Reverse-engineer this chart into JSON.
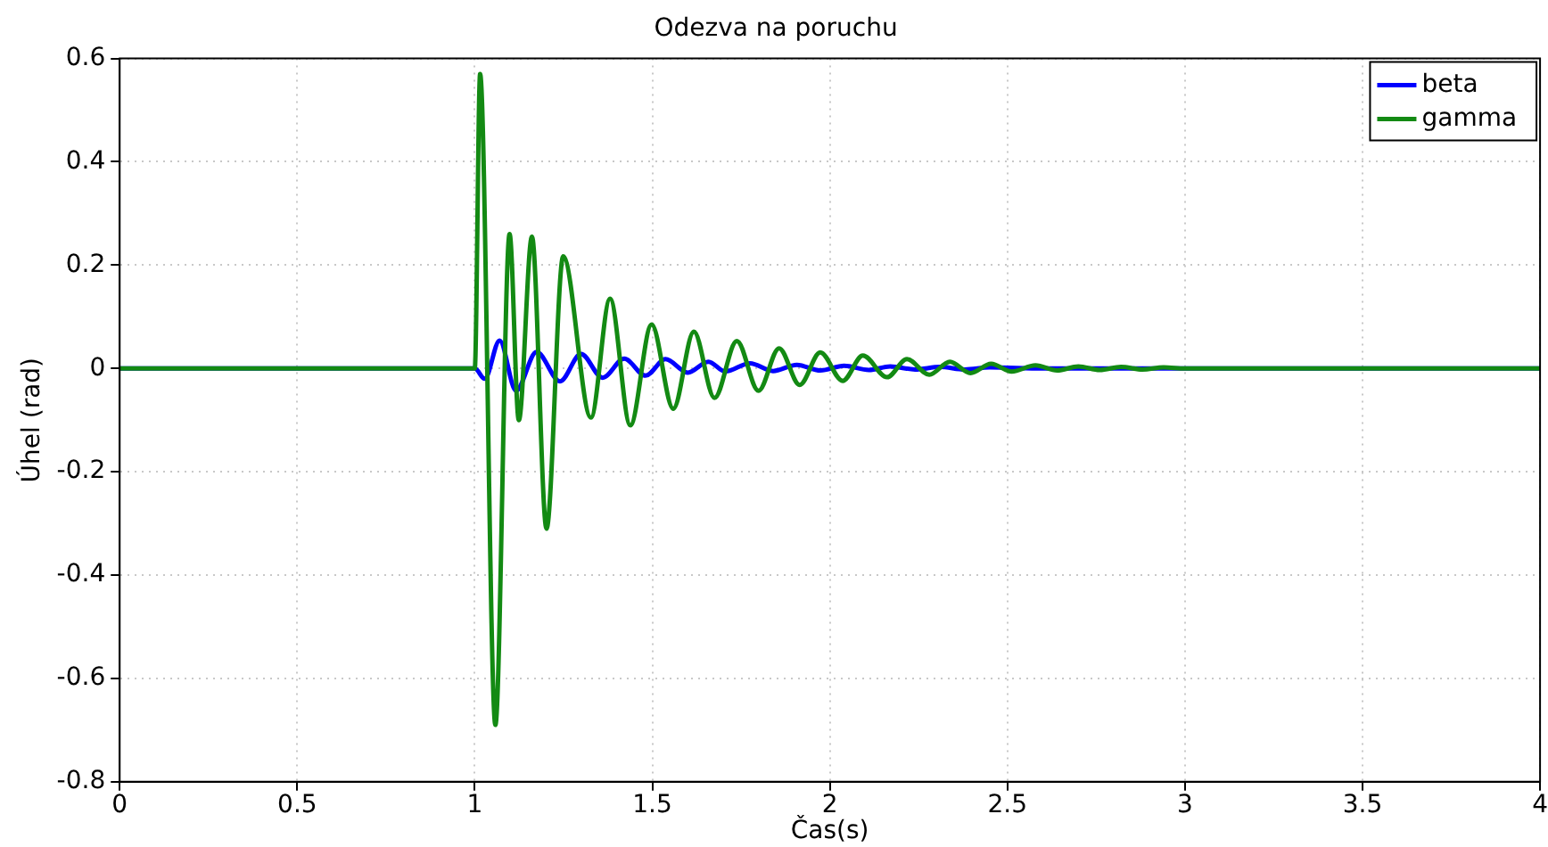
{
  "chart_data": {
    "type": "line",
    "title": "Odezva na poruchu",
    "xlabel": "Čas(s)",
    "ylabel": "Úhel (rad)",
    "xlim": [
      0,
      4
    ],
    "xticks": [
      0,
      0.5,
      1,
      1.5,
      2,
      2.5,
      3,
      3.5,
      4
    ],
    "ylim": [
      -0.8,
      0.6
    ],
    "yticks": [
      -0.8,
      -0.6,
      -0.4,
      -0.2,
      0,
      0.2,
      0.4,
      0.6
    ],
    "grid": true,
    "legend": "top right",
    "marker": "none",
    "line_style": "solid",
    "series": [
      {
        "name": "beta",
        "color": "#0000ff",
        "x": [
          0,
          1.0,
          1.028,
          1.07,
          1.116,
          1.174,
          1.24,
          1.299,
          1.36,
          1.421,
          1.481,
          1.537,
          1.6,
          1.658,
          1.705,
          1.775,
          1.84,
          1.907,
          1.973,
          2.04,
          2.11,
          2.17,
          2.24,
          2.31,
          2.38,
          2.45,
          2.6,
          4
        ],
        "values": [
          0,
          0,
          -0.02,
          0.054,
          -0.043,
          0.032,
          -0.025,
          0.028,
          -0.018,
          0.019,
          -0.014,
          0.018,
          -0.008,
          0.013,
          -0.006,
          0.01,
          -0.005,
          0.007,
          -0.004,
          0.005,
          -0.003,
          0.004,
          -0.002,
          0.003,
          -0.002,
          0.002,
          0,
          0
        ]
      },
      {
        "name": "gamma",
        "color": "#138a13",
        "x": [
          0,
          1.0,
          1.015,
          1.058,
          1.098,
          1.124,
          1.161,
          1.202,
          1.249,
          1.327,
          1.381,
          1.438,
          1.498,
          1.559,
          1.617,
          1.675,
          1.738,
          1.799,
          1.857,
          1.915,
          1.973,
          2.036,
          2.093,
          2.161,
          2.217,
          2.28,
          2.338,
          2.396,
          2.454,
          2.512,
          2.579,
          2.64,
          2.7,
          2.76,
          2.82,
          2.88,
          2.94,
          3.0,
          4
        ],
        "values": [
          0,
          0,
          0.57,
          -0.69,
          0.26,
          -0.1,
          0.255,
          -0.31,
          0.217,
          -0.095,
          0.135,
          -0.11,
          0.085,
          -0.078,
          0.071,
          -0.057,
          0.053,
          -0.043,
          0.039,
          -0.032,
          0.031,
          -0.024,
          0.025,
          -0.017,
          0.018,
          -0.012,
          0.013,
          -0.009,
          0.009,
          -0.006,
          0.006,
          -0.004,
          0.004,
          -0.003,
          0.003,
          -0.002,
          0.002,
          0,
          0
        ]
      }
    ]
  }
}
